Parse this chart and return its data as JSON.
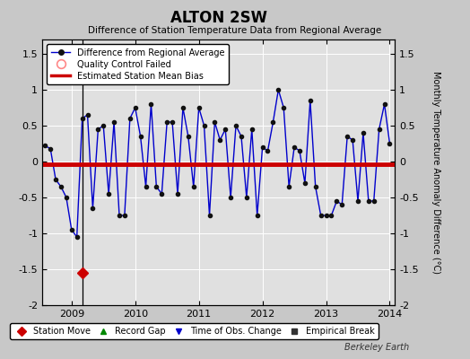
{
  "title": "ALTON 2SW",
  "subtitle": "Difference of Station Temperature Data from Regional Average",
  "ylabel": "Monthly Temperature Anomaly Difference (°C)",
  "xlim": [
    2008.54,
    2014.08
  ],
  "ylim": [
    -2.0,
    1.7
  ],
  "yticks": [
    -2.0,
    -1.5,
    -1.0,
    -0.5,
    0.0,
    0.5,
    1.0,
    1.5
  ],
  "ytick_labels": [
    "-2",
    "-1.5",
    "-1",
    "-0.5",
    "0",
    "0.5",
    "1",
    "1.5"
  ],
  "bias_value": -0.04,
  "station_move_x": 2009.17,
  "station_move_y": -1.55,
  "vertical_line_x": 2009.17,
  "background_color": "#e0e0e0",
  "fig_background_color": "#c8c8c8",
  "line_color": "#0000cc",
  "bias_color": "#cc0000",
  "station_move_color": "#cc0000",
  "months": [
    2008.583,
    2008.667,
    2008.75,
    2008.833,
    2008.917,
    2009.0,
    2009.083,
    2009.167,
    2009.25,
    2009.333,
    2009.417,
    2009.5,
    2009.583,
    2009.667,
    2009.75,
    2009.833,
    2009.917,
    2010.0,
    2010.083,
    2010.167,
    2010.25,
    2010.333,
    2010.417,
    2010.5,
    2010.583,
    2010.667,
    2010.75,
    2010.833,
    2010.917,
    2011.0,
    2011.083,
    2011.167,
    2011.25,
    2011.333,
    2011.417,
    2011.5,
    2011.583,
    2011.667,
    2011.75,
    2011.833,
    2011.917,
    2012.0,
    2012.083,
    2012.167,
    2012.25,
    2012.333,
    2012.417,
    2012.5,
    2012.583,
    2012.667,
    2012.75,
    2012.833,
    2012.917,
    2013.0,
    2013.083,
    2013.167,
    2013.25,
    2013.333,
    2013.417,
    2013.5,
    2013.583,
    2013.667,
    2013.75,
    2013.833,
    2013.917,
    2014.0
  ],
  "values": [
    0.22,
    0.18,
    -0.25,
    -0.35,
    -0.5,
    -0.95,
    -1.05,
    0.6,
    0.65,
    -0.65,
    0.45,
    0.5,
    -0.45,
    0.55,
    -0.75,
    -0.75,
    0.6,
    0.75,
    0.35,
    -0.35,
    0.8,
    -0.35,
    -0.45,
    0.55,
    0.55,
    -0.45,
    0.75,
    0.35,
    -0.35,
    0.75,
    0.5,
    -0.75,
    0.55,
    0.3,
    0.45,
    -0.5,
    0.5,
    0.35,
    -0.5,
    0.45,
    -0.75,
    0.2,
    0.15,
    0.55,
    1.0,
    0.75,
    -0.35,
    0.2,
    0.15,
    -0.3,
    0.85,
    -0.35,
    -0.75,
    -0.75,
    -0.75,
    -0.55,
    -0.6,
    0.35,
    0.3,
    -0.55,
    0.4,
    -0.55,
    -0.55,
    0.45,
    0.8,
    0.25
  ],
  "xticks": [
    2009,
    2010,
    2011,
    2012,
    2013,
    2014
  ],
  "xtick_labels": [
    "2009",
    "2010",
    "2011",
    "2012",
    "2013",
    "2014"
  ],
  "watermark": "Berkeley Earth"
}
